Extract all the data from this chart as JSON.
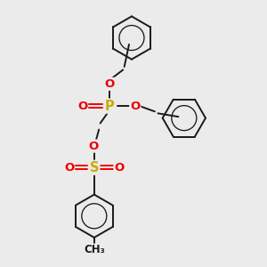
{
  "bg": "#ebebeb",
  "bond_color": "#1a1a1a",
  "P_color": "#ccaa00",
  "S_color": "#ccaa00",
  "O_color": "#ee0000",
  "lw": 1.4,
  "lw_ring": 1.3,
  "fs_heavy": 9.5,
  "fs_methyl": 8.5,
  "figsize": [
    3.0,
    3.0
  ],
  "dpi": 100,
  "xlim": [
    0,
    10
  ],
  "ylim": [
    0,
    10
  ]
}
